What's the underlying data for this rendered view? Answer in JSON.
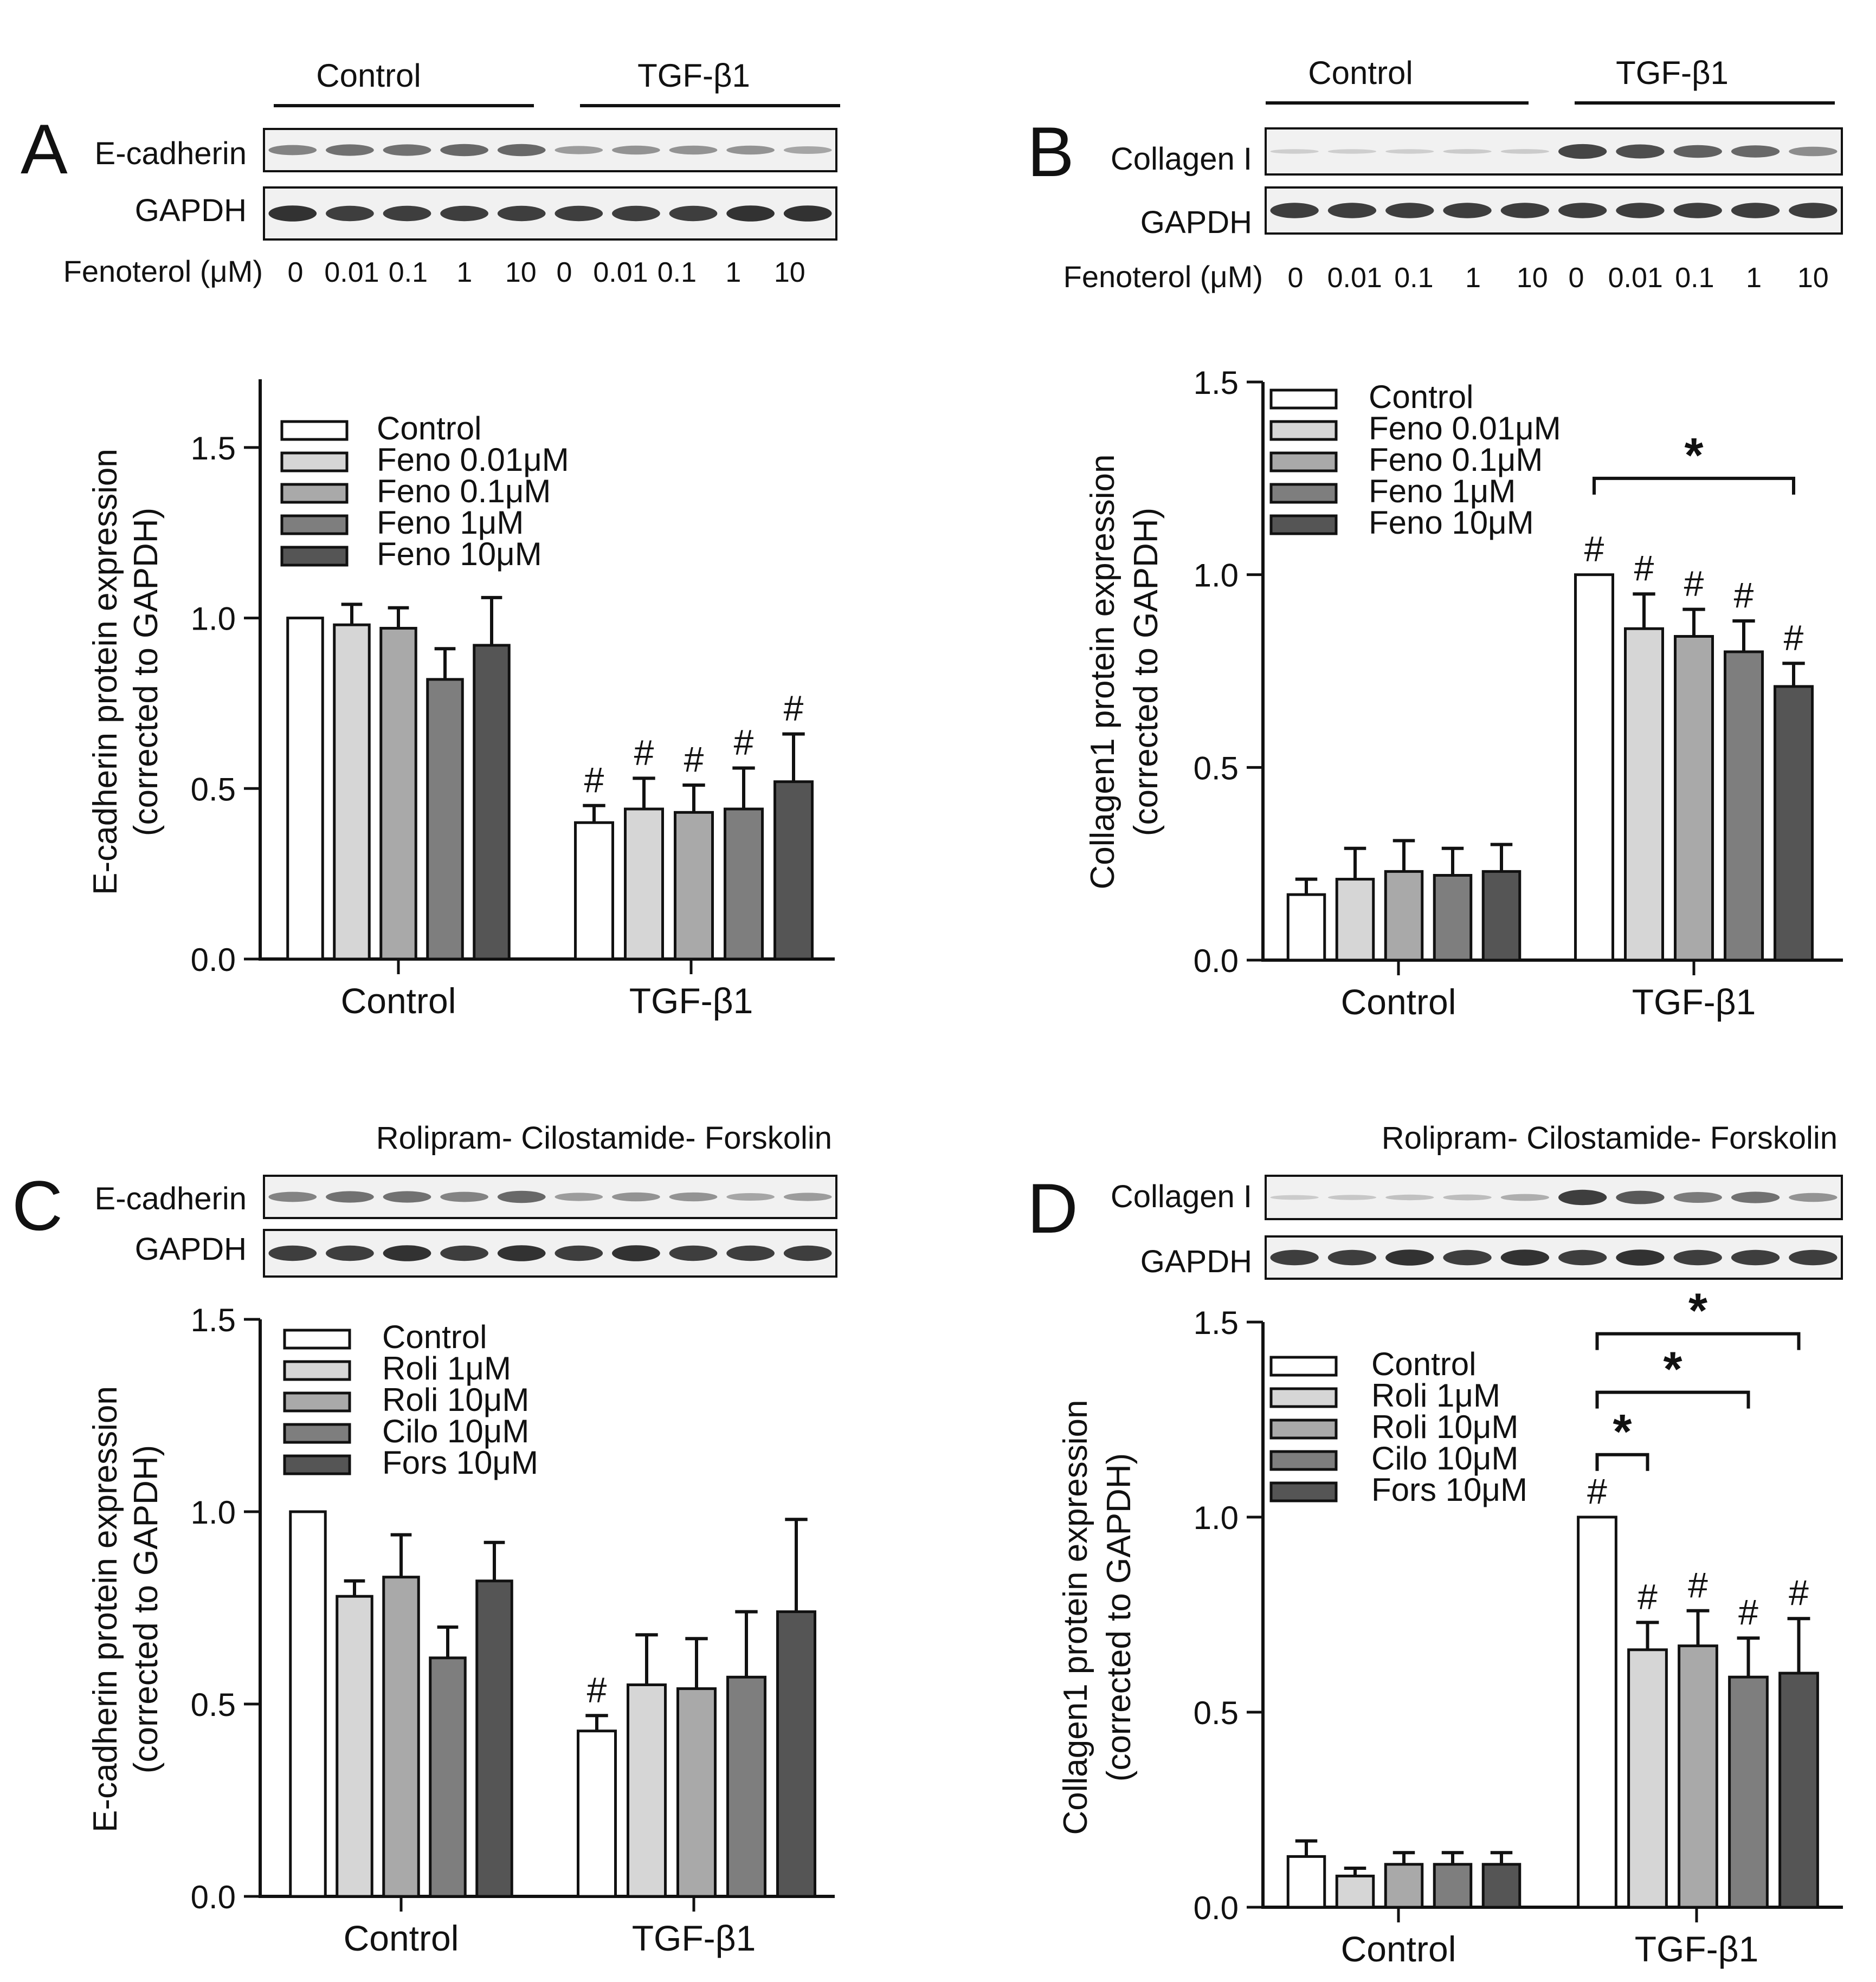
{
  "figure": {
    "panels": [
      {
        "letter": "A",
        "blot_header": {
          "left": "Control",
          "right": "TGF-β1"
        },
        "blot_rows": [
          {
            "label": "E-cadherin",
            "intensity": [
              0.45,
              0.55,
              0.55,
              0.6,
              0.6,
              0.3,
              0.35,
              0.35,
              0.35,
              0.25
            ]
          },
          {
            "label": "GAPDH",
            "intensity": [
              0.9,
              0.85,
              0.85,
              0.85,
              0.85,
              0.85,
              0.85,
              0.85,
              0.9,
              0.9
            ]
          }
        ],
        "dose": {
          "label": "Fenoterol (μM)",
          "values": [
            "0",
            "0.01",
            "0.1",
            "1",
            "10",
            "0",
            "0.01",
            "0.1",
            "1",
            "10"
          ]
        }
      },
      {
        "letter": "B",
        "blot_header": {
          "left": "Control",
          "right": "TGF-β1"
        },
        "blot_rows": [
          {
            "label": "Collagen I",
            "intensity": [
              0.02,
              0.02,
              0.02,
              0.03,
              0.03,
              0.8,
              0.75,
              0.65,
              0.6,
              0.4
            ]
          },
          {
            "label": "GAPDH",
            "intensity": [
              0.85,
              0.85,
              0.85,
              0.85,
              0.85,
              0.85,
              0.85,
              0.85,
              0.85,
              0.85
            ]
          }
        ],
        "dose": {
          "label": "Fenoterol (μM)",
          "values": [
            "0",
            "0.01",
            "0.1",
            "1",
            "10",
            "0",
            "0.01",
            "0.1",
            "1",
            "10"
          ]
        }
      },
      {
        "letter": "C",
        "blot_header": {
          "text": "Rolipram- Cilostamide- Forskolin"
        },
        "blot_rows": [
          {
            "label": "E-cadherin",
            "intensity": [
              0.45,
              0.55,
              0.55,
              0.45,
              0.6,
              0.3,
              0.35,
              0.35,
              0.25,
              0.3
            ]
          },
          {
            "label": "GAPDH",
            "intensity": [
              0.85,
              0.85,
              0.9,
              0.85,
              0.9,
              0.85,
              0.9,
              0.85,
              0.85,
              0.85
            ]
          }
        ]
      },
      {
        "letter": "D",
        "blot_header": {
          "text": "Rolipram- Cilostamide- Forskolin"
        },
        "blot_rows": [
          {
            "label": "Collagen I",
            "intensity": [
              0.03,
              0.06,
              0.1,
              0.12,
              0.2,
              0.85,
              0.7,
              0.5,
              0.55,
              0.35
            ]
          },
          {
            "label": "GAPDH",
            "intensity": [
              0.85,
              0.85,
              0.9,
              0.85,
              0.9,
              0.85,
              0.9,
              0.85,
              0.85,
              0.85
            ]
          }
        ]
      }
    ]
  },
  "chart_data": [
    {
      "panel": "A",
      "type": "bar",
      "ylabel": "E-cadherin protein expression",
      "ylabel2": "(corrected to GAPDH)",
      "ylim": [
        0,
        1.7
      ],
      "yticks": [
        "0.0",
        "0.5",
        "1.0",
        "1.5"
      ],
      "categories": [
        "Control",
        "TGF-β1"
      ],
      "series": [
        {
          "name": "Control",
          "values": [
            1.0,
            0.4
          ],
          "errors": [
            0,
            0.05
          ],
          "marks": [
            "",
            "#"
          ]
        },
        {
          "name": "Feno 0.01μM",
          "values": [
            0.98,
            0.44
          ],
          "errors": [
            0.06,
            0.09
          ],
          "marks": [
            "",
            "#"
          ]
        },
        {
          "name": "Feno 0.1μM",
          "values": [
            0.97,
            0.43
          ],
          "errors": [
            0.06,
            0.08
          ],
          "marks": [
            "",
            "#"
          ]
        },
        {
          "name": "Feno 1μM",
          "values": [
            0.82,
            0.44
          ],
          "errors": [
            0.09,
            0.12
          ],
          "marks": [
            "",
            "#"
          ]
        },
        {
          "name": "Feno 10μM",
          "values": [
            0.92,
            0.52
          ],
          "errors": [
            0.14,
            0.14
          ],
          "marks": [
            "",
            "#"
          ]
        }
      ],
      "brackets": []
    },
    {
      "panel": "B",
      "type": "bar",
      "ylabel": "Collagen1 protein expression",
      "ylabel2": "(corrected to GAPDH)",
      "ylim": [
        0,
        1.5
      ],
      "yticks": [
        "0.0",
        "0.5",
        "1.0",
        "1.5"
      ],
      "categories": [
        "Control",
        "TGF-β1"
      ],
      "series": [
        {
          "name": "Control",
          "values": [
            0.17,
            1.0
          ],
          "errors": [
            0.04,
            0
          ],
          "marks": [
            "",
            "#"
          ]
        },
        {
          "name": "Feno 0.01μM",
          "values": [
            0.21,
            0.86
          ],
          "errors": [
            0.08,
            0.09
          ],
          "marks": [
            "",
            "#"
          ]
        },
        {
          "name": "Feno 0.1μM",
          "values": [
            0.23,
            0.84
          ],
          "errors": [
            0.08,
            0.07
          ],
          "marks": [
            "",
            "#"
          ]
        },
        {
          "name": "Feno 1μM",
          "values": [
            0.22,
            0.8
          ],
          "errors": [
            0.07,
            0.08
          ],
          "marks": [
            "",
            "#"
          ]
        },
        {
          "name": "Feno 10μM",
          "values": [
            0.23,
            0.71
          ],
          "errors": [
            0.07,
            0.06
          ],
          "marks": [
            "",
            "#"
          ]
        }
      ],
      "brackets": [
        {
          "group": 1,
          "from": 0,
          "to": 4,
          "value": 1.25,
          "label": "*"
        }
      ]
    },
    {
      "panel": "C",
      "type": "bar",
      "ylabel": "E-cadherin protein expression",
      "ylabel2": "(corrected to GAPDH)",
      "ylim": [
        0,
        1.5
      ],
      "yticks": [
        "0.0",
        "0.5",
        "1.0",
        "1.5"
      ],
      "categories": [
        "Control",
        "TGF-β1"
      ],
      "series": [
        {
          "name": "Control",
          "values": [
            1.0,
            0.43
          ],
          "errors": [
            0,
            0.04
          ],
          "marks": [
            "",
            "#"
          ]
        },
        {
          "name": "Roli 1μM",
          "values": [
            0.78,
            0.55
          ],
          "errors": [
            0.04,
            0.13
          ],
          "marks": [
            "",
            ""
          ]
        },
        {
          "name": "Roli 10μM",
          "values": [
            0.83,
            0.54
          ],
          "errors": [
            0.11,
            0.13
          ],
          "marks": [
            "",
            ""
          ]
        },
        {
          "name": "Cilo 10μM",
          "values": [
            0.62,
            0.57
          ],
          "errors": [
            0.08,
            0.17
          ],
          "marks": [
            "",
            ""
          ]
        },
        {
          "name": "Fors 10μM",
          "values": [
            0.82,
            0.74
          ],
          "errors": [
            0.1,
            0.24
          ],
          "marks": [
            "",
            ""
          ]
        }
      ],
      "brackets": []
    },
    {
      "panel": "D",
      "type": "bar",
      "ylabel": "Collagen1 protein expression",
      "ylabel2": "(corrected to GAPDH)",
      "ylim": [
        0,
        1.5
      ],
      "yticks": [
        "0.0",
        "0.5",
        "1.0",
        "1.5"
      ],
      "categories": [
        "Control",
        "TGF-β1"
      ],
      "series": [
        {
          "name": "Control",
          "values": [
            0.13,
            1.0
          ],
          "errors": [
            0.04,
            0
          ],
          "marks": [
            "",
            "#"
          ]
        },
        {
          "name": "Roli 1μM",
          "values": [
            0.08,
            0.66
          ],
          "errors": [
            0.02,
            0.07
          ],
          "marks": [
            "",
            "#"
          ]
        },
        {
          "name": "Roli 10μM",
          "values": [
            0.11,
            0.67
          ],
          "errors": [
            0.03,
            0.09
          ],
          "marks": [
            "",
            "#"
          ]
        },
        {
          "name": "Cilo 10μM",
          "values": [
            0.11,
            0.59
          ],
          "errors": [
            0.03,
            0.1
          ],
          "marks": [
            "",
            "#"
          ]
        },
        {
          "name": "Fors 10μM",
          "values": [
            0.11,
            0.6
          ],
          "errors": [
            0.03,
            0.14
          ],
          "marks": [
            "",
            "#"
          ]
        }
      ],
      "brackets": [
        {
          "group": 1,
          "from": 0,
          "to": 4,
          "value": 1.47,
          "label": "*"
        },
        {
          "group": 1,
          "from": 0,
          "to": 3,
          "value": 1.32,
          "label": "*"
        },
        {
          "group": 1,
          "from": 0,
          "to": 1,
          "value": 1.16,
          "label": "*"
        }
      ]
    }
  ]
}
